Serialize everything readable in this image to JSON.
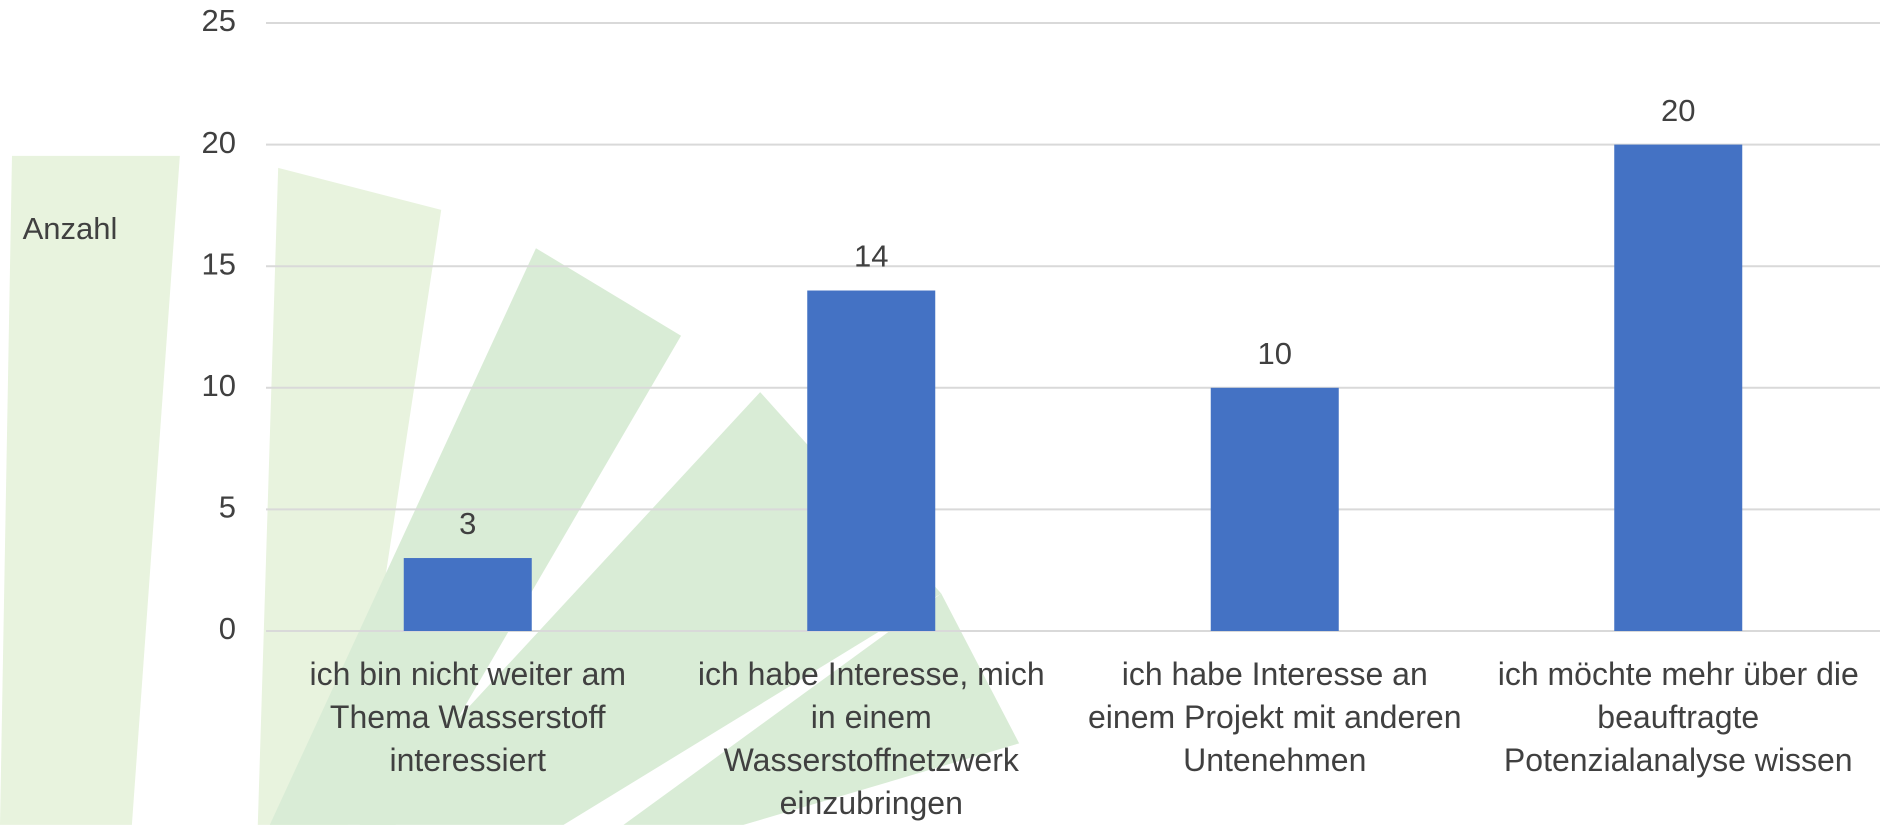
{
  "chart_data": {
    "type": "bar",
    "y_label": "Anzahl",
    "categories": [
      "ich bin nicht weiter am Thema Wasserstoff interessiert",
      "ich habe Interesse, mich in einem Wasserstoffnetzwerk einzubringen",
      "ich habe Interesse an einem Projekt mit anderen Untenehmen",
      "ich möchte mehr über die beauftragte Potenzialanalyse wissen"
    ],
    "values": [
      3,
      14,
      10,
      20
    ],
    "color": "#4472c4",
    "ylim": [
      0,
      25
    ],
    "yticks": [
      0,
      5,
      10,
      15,
      20,
      25
    ],
    "grid": true
  }
}
